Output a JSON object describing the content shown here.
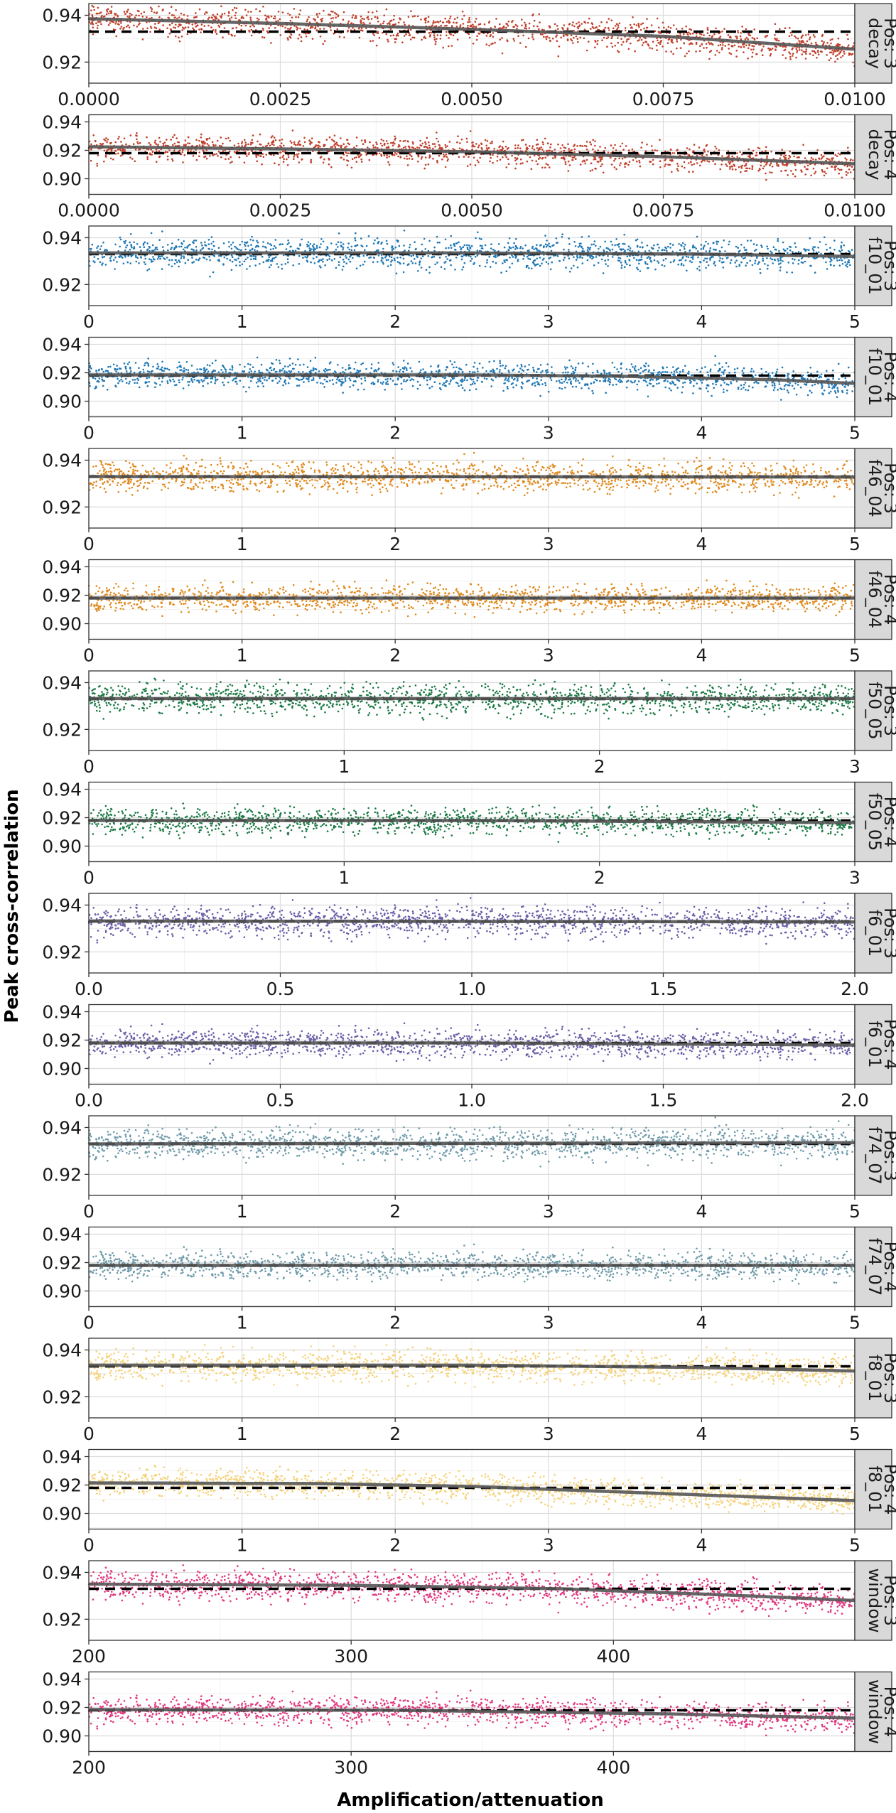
{
  "chart_data": {
    "type": "scatter",
    "xlabel": "Amplification/attenuation",
    "ylabel": "Peak cross-correlation",
    "grid": true,
    "legend": "none",
    "dashed_baseline": {
      "pos3": 0.933,
      "pos4": 0.918
    },
    "panels": [
      {
        "strip": [
          "decay",
          "Pos: 3"
        ],
        "color": "#C0402B",
        "xlim": [
          0,
          0.01
        ],
        "ylim": [
          0.911,
          0.945
        ],
        "xticks": [
          "0.0000",
          "0.0025",
          "0.0050",
          "0.0075",
          "0.0100"
        ],
        "xtick_values": [
          0,
          0.0025,
          0.005,
          0.0075,
          0.01
        ],
        "yticks": [
          "0.92",
          "0.94"
        ],
        "ytick_values": [
          0.92,
          0.94
        ],
        "trend": [
          [
            0,
            0.9385
          ],
          [
            0.0025,
            0.9365
          ],
          [
            0.005,
            0.934
          ],
          [
            0.0075,
            0.931
          ],
          [
            0.01,
            0.9255
          ]
        ],
        "spread": 0.0045,
        "baseline": 0.933
      },
      {
        "strip": [
          "decay",
          "Pos: 4"
        ],
        "color": "#C0402B",
        "xlim": [
          0,
          0.01
        ],
        "ylim": [
          0.889,
          0.945
        ],
        "xticks": [
          "0.0000",
          "0.0025",
          "0.0050",
          "0.0075",
          "0.0100"
        ],
        "xtick_values": [
          0,
          0.0025,
          0.005,
          0.0075,
          0.01
        ],
        "yticks": [
          "0.90",
          "0.92",
          "0.94"
        ],
        "ytick_values": [
          0.9,
          0.92,
          0.94
        ],
        "trend": [
          [
            0,
            0.9225
          ],
          [
            0.0025,
            0.921
          ],
          [
            0.005,
            0.919
          ],
          [
            0.0075,
            0.9155
          ],
          [
            0.01,
            0.9105
          ]
        ],
        "spread": 0.0065,
        "baseline": 0.918
      },
      {
        "strip": [
          "f10_01",
          "Pos: 3"
        ],
        "color": "#1F78B4",
        "xlim": [
          0,
          5
        ],
        "ylim": [
          0.911,
          0.945
        ],
        "xticks": [
          "0",
          "1",
          "2",
          "3",
          "4",
          "5"
        ],
        "xtick_values": [
          0,
          1,
          2,
          3,
          4,
          5
        ],
        "yticks": [
          "0.92",
          "0.94"
        ],
        "ytick_values": [
          0.92,
          0.94
        ],
        "trend": [
          [
            0,
            0.9335
          ],
          [
            2.5,
            0.9335
          ],
          [
            4,
            0.933
          ],
          [
            5,
            0.932
          ]
        ],
        "spread": 0.0045,
        "baseline": 0.933
      },
      {
        "strip": [
          "f10_01",
          "Pos: 4"
        ],
        "color": "#1F78B4",
        "xlim": [
          0,
          5
        ],
        "ylim": [
          0.889,
          0.945
        ],
        "xticks": [
          "0",
          "1",
          "2",
          "3",
          "4",
          "5"
        ],
        "xtick_values": [
          0,
          1,
          2,
          3,
          4,
          5
        ],
        "yticks": [
          "0.90",
          "0.92",
          "0.94"
        ],
        "ytick_values": [
          0.9,
          0.92,
          0.94
        ],
        "trend": [
          [
            0,
            0.9185
          ],
          [
            2.5,
            0.9185
          ],
          [
            3.5,
            0.9175
          ],
          [
            4.5,
            0.915
          ],
          [
            5,
            0.9125
          ]
        ],
        "spread": 0.0065,
        "baseline": 0.918
      },
      {
        "strip": [
          "f46_04",
          "Pos: 3"
        ],
        "color": "#E08A1E",
        "xlim": [
          0,
          5
        ],
        "ylim": [
          0.911,
          0.945
        ],
        "xticks": [
          "0",
          "1",
          "2",
          "3",
          "4",
          "5"
        ],
        "xtick_values": [
          0,
          1,
          2,
          3,
          4,
          5
        ],
        "yticks": [
          "0.92",
          "0.94"
        ],
        "ytick_values": [
          0.92,
          0.94
        ],
        "trend": [
          [
            0,
            0.933
          ],
          [
            5,
            0.9328
          ]
        ],
        "spread": 0.0045,
        "baseline": 0.933
      },
      {
        "strip": [
          "f46_04",
          "Pos: 4"
        ],
        "color": "#E08A1E",
        "xlim": [
          0,
          5
        ],
        "ylim": [
          0.889,
          0.945
        ],
        "xticks": [
          "0",
          "1",
          "2",
          "3",
          "4",
          "5"
        ],
        "xtick_values": [
          0,
          1,
          2,
          3,
          4,
          5
        ],
        "yticks": [
          "0.90",
          "0.92",
          "0.94"
        ],
        "ytick_values": [
          0.9,
          0.92,
          0.94
        ],
        "trend": [
          [
            0,
            0.918
          ],
          [
            5,
            0.918
          ]
        ],
        "spread": 0.0065,
        "baseline": 0.918
      },
      {
        "strip": [
          "f50_05",
          "Pos: 3"
        ],
        "color": "#1B7A45",
        "xlim": [
          0,
          3
        ],
        "ylim": [
          0.911,
          0.945
        ],
        "xticks": [
          "0",
          "1",
          "2",
          "3"
        ],
        "xtick_values": [
          0,
          1,
          2,
          3
        ],
        "yticks": [
          "0.92",
          "0.94"
        ],
        "ytick_values": [
          0.92,
          0.94
        ],
        "trend": [
          [
            0,
            0.9332
          ],
          [
            3,
            0.9332
          ]
        ],
        "spread": 0.0045,
        "baseline": 0.933
      },
      {
        "strip": [
          "f50_05",
          "Pos: 4"
        ],
        "color": "#1B7A45",
        "xlim": [
          0,
          3
        ],
        "ylim": [
          0.889,
          0.945
        ],
        "xticks": [
          "0",
          "1",
          "2",
          "3"
        ],
        "xtick_values": [
          0,
          1,
          2,
          3
        ],
        "yticks": [
          "0.90",
          "0.92",
          "0.94"
        ],
        "ytick_values": [
          0.9,
          0.92,
          0.94
        ],
        "trend": [
          [
            0,
            0.918
          ],
          [
            1.5,
            0.918
          ],
          [
            3,
            0.9165
          ]
        ],
        "spread": 0.0065,
        "baseline": 0.918
      },
      {
        "strip": [
          "f6_01",
          "Pos: 3"
        ],
        "color": "#6A5FA8",
        "xlim": [
          0,
          2
        ],
        "ylim": [
          0.911,
          0.945
        ],
        "xticks": [
          "0.0",
          "0.5",
          "1.0",
          "1.5",
          "2.0"
        ],
        "xtick_values": [
          0,
          0.5,
          1,
          1.5,
          2
        ],
        "yticks": [
          "0.92",
          "0.94"
        ],
        "ytick_values": [
          0.92,
          0.94
        ],
        "trend": [
          [
            0,
            0.9332
          ],
          [
            2,
            0.9328
          ]
        ],
        "spread": 0.0045,
        "baseline": 0.933
      },
      {
        "strip": [
          "f6_01",
          "Pos: 4"
        ],
        "color": "#6A5FA8",
        "xlim": [
          0,
          2
        ],
        "ylim": [
          0.889,
          0.945
        ],
        "xticks": [
          "0.0",
          "0.5",
          "1.0",
          "1.5",
          "2.0"
        ],
        "xtick_values": [
          0,
          0.5,
          1,
          1.5,
          2
        ],
        "yticks": [
          "0.90",
          "0.92",
          "0.94"
        ],
        "ytick_values": [
          0.9,
          0.92,
          0.94
        ],
        "trend": [
          [
            0,
            0.918
          ],
          [
            1,
            0.918
          ],
          [
            2,
            0.9165
          ]
        ],
        "spread": 0.0065,
        "baseline": 0.918
      },
      {
        "strip": [
          "f74_07",
          "Pos: 3"
        ],
        "color": "#6F9BAA",
        "xlim": [
          0,
          5
        ],
        "ylim": [
          0.911,
          0.945
        ],
        "xticks": [
          "0",
          "1",
          "2",
          "3",
          "4",
          "5"
        ],
        "xtick_values": [
          0,
          1,
          2,
          3,
          4,
          5
        ],
        "yticks": [
          "0.92",
          "0.94"
        ],
        "ytick_values": [
          0.92,
          0.94
        ],
        "trend": [
          [
            0,
            0.933
          ],
          [
            5,
            0.9335
          ]
        ],
        "spread": 0.0045,
        "baseline": 0.933
      },
      {
        "strip": [
          "f74_07",
          "Pos: 4"
        ],
        "color": "#6F9BAA",
        "xlim": [
          0,
          5
        ],
        "ylim": [
          0.889,
          0.945
        ],
        "xticks": [
          "0",
          "1",
          "2",
          "3",
          "4",
          "5"
        ],
        "xtick_values": [
          0,
          1,
          2,
          3,
          4,
          5
        ],
        "yticks": [
          "0.90",
          "0.92",
          "0.94"
        ],
        "ytick_values": [
          0.9,
          0.92,
          0.94
        ],
        "trend": [
          [
            0,
            0.918
          ],
          [
            5,
            0.918
          ]
        ],
        "spread": 0.0065,
        "baseline": 0.918
      },
      {
        "strip": [
          "f8_01",
          "Pos: 3"
        ],
        "color": "#F5D27A",
        "xlim": [
          0,
          5
        ],
        "ylim": [
          0.911,
          0.945
        ],
        "xticks": [
          "0",
          "1",
          "2",
          "3",
          "4",
          "5"
        ],
        "xtick_values": [
          0,
          1,
          2,
          3,
          4,
          5
        ],
        "yticks": [
          "0.92",
          "0.94"
        ],
        "ytick_values": [
          0.92,
          0.94
        ],
        "trend": [
          [
            0,
            0.9335
          ],
          [
            2.5,
            0.9335
          ],
          [
            4,
            0.9325
          ],
          [
            5,
            0.931
          ]
        ],
        "spread": 0.0045,
        "baseline": 0.933
      },
      {
        "strip": [
          "f8_01",
          "Pos: 4"
        ],
        "color": "#F5D27A",
        "xlim": [
          0,
          5
        ],
        "ylim": [
          0.889,
          0.945
        ],
        "xticks": [
          "0",
          "1",
          "2",
          "3",
          "4",
          "5"
        ],
        "xtick_values": [
          0,
          1,
          2,
          3,
          4,
          5
        ],
        "yticks": [
          "0.90",
          "0.92",
          "0.94"
        ],
        "ytick_values": [
          0.9,
          0.92,
          0.94
        ],
        "trend": [
          [
            0,
            0.9215
          ],
          [
            1.5,
            0.921
          ],
          [
            2.5,
            0.919
          ],
          [
            3.5,
            0.915
          ],
          [
            4.5,
            0.911
          ],
          [
            5,
            0.909
          ]
        ],
        "spread": 0.0065,
        "baseline": 0.918
      },
      {
        "strip": [
          "window",
          "Pos: 3"
        ],
        "color": "#E0377F",
        "xlim": [
          200,
          492
        ],
        "ylim": [
          0.911,
          0.945
        ],
        "xticks": [
          "200",
          "300",
          "400"
        ],
        "xtick_values": [
          200,
          300,
          400
        ],
        "yticks": [
          "0.92",
          "0.94"
        ],
        "ytick_values": [
          0.92,
          0.94
        ],
        "trend": [
          [
            200,
            0.935
          ],
          [
            300,
            0.9345
          ],
          [
            380,
            0.933
          ],
          [
            440,
            0.9305
          ],
          [
            492,
            0.928
          ]
        ],
        "spread": 0.0045,
        "baseline": 0.933
      },
      {
        "strip": [
          "window",
          "Pos: 4"
        ],
        "color": "#E0377F",
        "xlim": [
          200,
          492
        ],
        "ylim": [
          0.889,
          0.945
        ],
        "xticks": [
          "200",
          "300",
          "400"
        ],
        "xtick_values": [
          200,
          300,
          400
        ],
        "yticks": [
          "0.90",
          "0.92",
          "0.94"
        ],
        "ytick_values": [
          0.9,
          0.92,
          0.94
        ],
        "trend": [
          [
            200,
            0.9185
          ],
          [
            320,
            0.918
          ],
          [
            420,
            0.9155
          ],
          [
            492,
            0.9125
          ]
        ],
        "spread": 0.0065,
        "baseline": 0.918
      }
    ]
  }
}
